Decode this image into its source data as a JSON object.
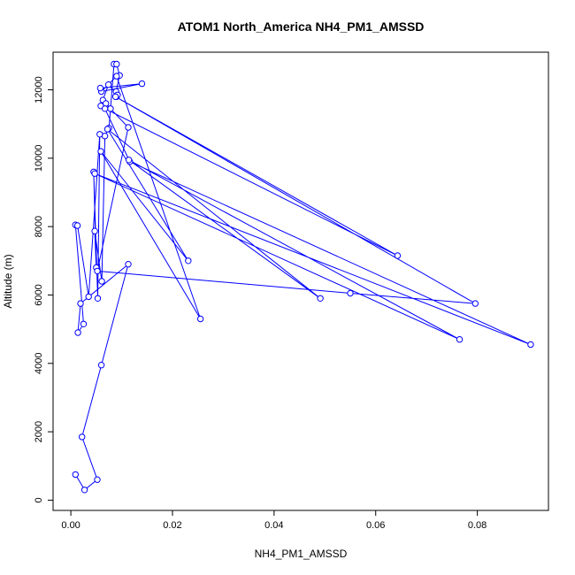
{
  "chart_data": {
    "type": "line",
    "title": "ATOM1 North_America NH4_PM1_AMSSD",
    "xlabel": "NH4_PM1_AMSSD",
    "ylabel": "Altitude (m)",
    "xlim": [
      -0.0035,
      0.094
    ],
    "ylim": [
      -300,
      13100
    ],
    "x_ticks": [
      "0.00",
      "0.02",
      "0.04",
      "0.06",
      "0.08"
    ],
    "x_tick_values": [
      0,
      0.02,
      0.04,
      0.06,
      0.08
    ],
    "y_ticks": [
      "0",
      "2000",
      "4000",
      "6000",
      "8000",
      "10000",
      "12000"
    ],
    "y_tick_values": [
      0,
      2000,
      4000,
      6000,
      8000,
      10000,
      12000
    ],
    "grid": false,
    "marker": "open-circle",
    "color": "#0000ff",
    "series": [
      {
        "x": [
          0.0009,
          0.0027,
          0.0052,
          0.0022,
          0.006,
          0.0113,
          0.0019,
          0.0014,
          0.0025,
          0.0009,
          0.0013,
          0.0035,
          0.0057,
          0.0053,
          0.0045,
          0.005,
          0.0047,
          0.0061,
          0.0067,
          0.0075,
          0.0085,
          0.009,
          0.0096,
          0.0089,
          0.009,
          0.0092,
          0.0074,
          0.0063,
          0.0059,
          0.0069,
          0.0078,
          0.0113,
          0.0052,
          0.055,
          0.0796,
          0.0088,
          0.0643,
          0.0067,
          0.0116,
          0.0905,
          0.0047,
          0.0765,
          0.0114,
          0.0491,
          0.0072,
          0.0231,
          0.0059,
          0.0255,
          0.009,
          0.006,
          0.014,
          0.0058
        ],
        "y": [
          750,
          300,
          600,
          1850,
          3950,
          6900,
          5750,
          4900,
          5150,
          8050,
          8030,
          5950,
          10700,
          5900,
          9600,
          6800,
          7870,
          6400,
          10650,
          10880,
          12750,
          12750,
          12420,
          11950,
          11800,
          11850,
          12150,
          11700,
          11530,
          11600,
          11450,
          10900,
          6700,
          6050,
          5750,
          11800,
          7150,
          11450,
          9900,
          4550,
          9550,
          4700,
          9950,
          5900,
          10850,
          7000,
          10200,
          5300,
          12400,
          11950,
          12180,
          12050
        ]
      }
    ]
  }
}
